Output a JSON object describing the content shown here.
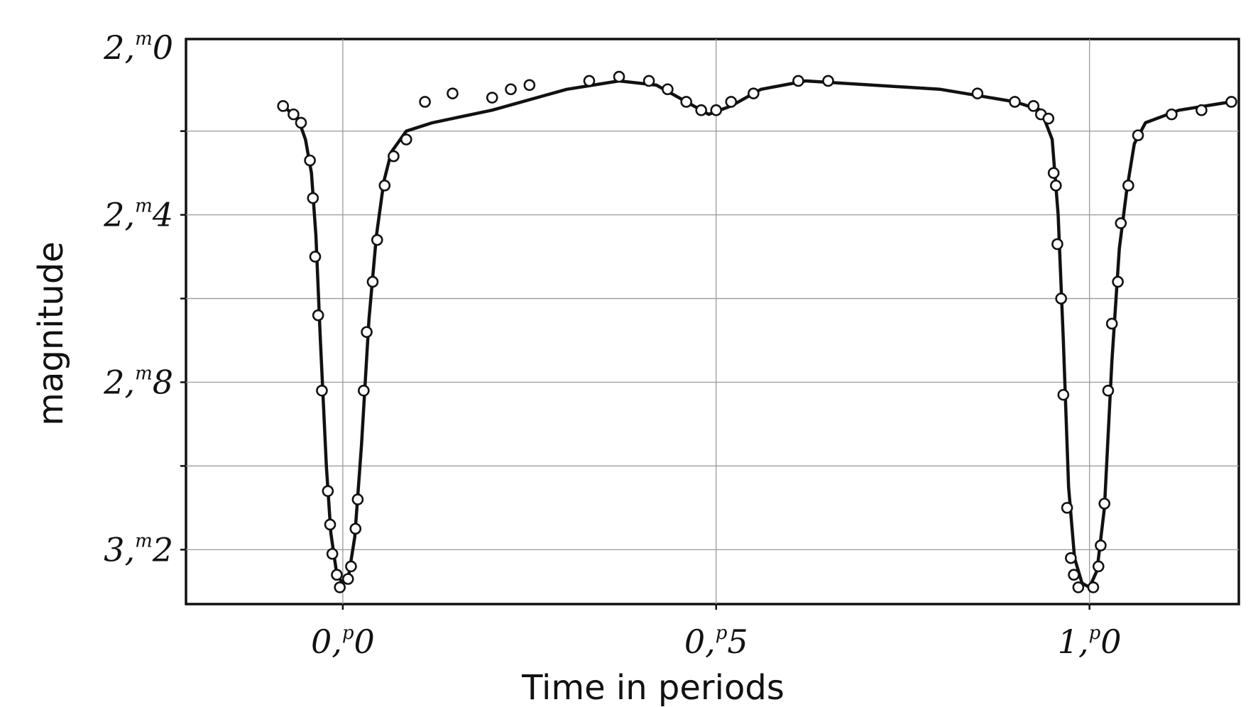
{
  "chart_data": {
    "type": "scatter",
    "title": "",
    "xlabel": "Time in periods",
    "ylabel": "magnitude",
    "xlim": [
      -0.21,
      1.2
    ],
    "ylim": [
      3.33,
      1.98
    ],
    "y_inverted": true,
    "grid": true,
    "x_ticks": [
      {
        "value": 0.0,
        "main": "0,",
        "sup": "p",
        "tail": "0"
      },
      {
        "value": 0.5,
        "main": "0,",
        "sup": "p",
        "tail": "5"
      },
      {
        "value": 1.0,
        "main": "1,",
        "sup": "p",
        "tail": "0"
      }
    ],
    "x_gridlines": [
      0.0,
      0.5,
      1.0
    ],
    "y_ticks": [
      {
        "value": 2.0,
        "main": "2,",
        "sup": "m",
        "tail": "0"
      },
      {
        "value": 2.4,
        "main": "2,",
        "sup": "m",
        "tail": "4"
      },
      {
        "value": 2.8,
        "main": "2,",
        "sup": "m",
        "tail": "8"
      },
      {
        "value": 3.2,
        "main": "3,",
        "sup": "m",
        "tail": "2"
      }
    ],
    "y_gridlines": [
      2.2,
      2.4,
      2.6,
      2.8,
      3.0,
      3.2
    ],
    "series": [
      {
        "points": [
          [
            -0.08,
            2.14
          ],
          [
            -0.066,
            2.16
          ],
          [
            -0.056,
            2.18
          ],
          [
            -0.044,
            2.27
          ],
          [
            -0.04,
            2.36
          ],
          [
            -0.037,
            2.5
          ],
          [
            -0.033,
            2.64
          ],
          [
            -0.028,
            2.82
          ],
          [
            -0.02,
            3.06
          ],
          [
            -0.017,
            3.14
          ],
          [
            -0.014,
            3.21
          ],
          [
            -0.008,
            3.26
          ],
          [
            -0.004,
            3.29
          ],
          [
            0.007,
            3.27
          ],
          [
            0.011,
            3.24
          ],
          [
            0.017,
            3.15
          ],
          [
            0.02,
            3.08
          ],
          [
            0.028,
            2.82
          ],
          [
            0.032,
            2.68
          ],
          [
            0.04,
            2.56
          ],
          [
            0.046,
            2.46
          ],
          [
            0.056,
            2.33
          ],
          [
            0.068,
            2.26
          ],
          [
            0.085,
            2.22
          ],
          [
            0.11,
            2.13
          ],
          [
            0.147,
            2.11
          ],
          [
            0.2,
            2.12
          ],
          [
            0.225,
            2.1
          ],
          [
            0.25,
            2.09
          ],
          [
            0.33,
            2.08
          ],
          [
            0.37,
            2.07
          ],
          [
            0.41,
            2.08
          ],
          [
            0.435,
            2.1
          ],
          [
            0.46,
            2.13
          ],
          [
            0.48,
            2.15
          ],
          [
            0.5,
            2.15
          ],
          [
            0.52,
            2.13
          ],
          [
            0.55,
            2.11
          ],
          [
            0.61,
            2.08
          ],
          [
            0.65,
            2.08
          ],
          [
            0.85,
            2.11
          ],
          [
            0.9,
            2.13
          ],
          [
            0.925,
            2.14
          ],
          [
            0.935,
            2.16
          ],
          [
            0.945,
            2.17
          ],
          [
            0.952,
            2.3
          ],
          [
            0.955,
            2.33
          ],
          [
            0.957,
            2.47
          ],
          [
            0.962,
            2.6
          ],
          [
            0.965,
            2.83
          ],
          [
            0.97,
            3.1
          ],
          [
            0.975,
            3.22
          ],
          [
            0.979,
            3.26
          ],
          [
            0.985,
            3.29
          ],
          [
            1.005,
            3.29
          ],
          [
            1.012,
            3.24
          ],
          [
            1.015,
            3.19
          ],
          [
            1.02,
            3.09
          ],
          [
            1.025,
            2.82
          ],
          [
            1.03,
            2.66
          ],
          [
            1.038,
            2.56
          ],
          [
            1.042,
            2.42
          ],
          [
            1.052,
            2.33
          ],
          [
            1.065,
            2.21
          ],
          [
            1.11,
            2.16
          ],
          [
            1.15,
            2.15
          ],
          [
            1.19,
            2.13
          ]
        ]
      }
    ],
    "fitted_curve": [
      [
        -0.08,
        2.14
      ],
      [
        -0.06,
        2.17
      ],
      [
        -0.05,
        2.22
      ],
      [
        -0.042,
        2.3
      ],
      [
        -0.036,
        2.45
      ],
      [
        -0.03,
        2.7
      ],
      [
        -0.022,
        3.0
      ],
      [
        -0.016,
        3.16
      ],
      [
        -0.008,
        3.26
      ],
      [
        0.0,
        3.28
      ],
      [
        0.008,
        3.26
      ],
      [
        0.016,
        3.17
      ],
      [
        0.025,
        2.95
      ],
      [
        0.035,
        2.65
      ],
      [
        0.045,
        2.45
      ],
      [
        0.055,
        2.32
      ],
      [
        0.065,
        2.25
      ],
      [
        0.085,
        2.2
      ],
      [
        0.12,
        2.18
      ],
      [
        0.2,
        2.15
      ],
      [
        0.3,
        2.1
      ],
      [
        0.37,
        2.08
      ],
      [
        0.42,
        2.09
      ],
      [
        0.46,
        2.13
      ],
      [
        0.49,
        2.16
      ],
      [
        0.52,
        2.14
      ],
      [
        0.56,
        2.1
      ],
      [
        0.62,
        2.08
      ],
      [
        0.8,
        2.1
      ],
      [
        0.9,
        2.13
      ],
      [
        0.935,
        2.15
      ],
      [
        0.95,
        2.22
      ],
      [
        0.958,
        2.4
      ],
      [
        0.965,
        2.7
      ],
      [
        0.972,
        3.05
      ],
      [
        0.98,
        3.22
      ],
      [
        0.99,
        3.28
      ],
      [
        1.0,
        3.29
      ],
      [
        1.01,
        3.25
      ],
      [
        1.02,
        3.1
      ],
      [
        1.03,
        2.75
      ],
      [
        1.04,
        2.48
      ],
      [
        1.05,
        2.34
      ],
      [
        1.06,
        2.23
      ],
      [
        1.075,
        2.18
      ],
      [
        1.12,
        2.15
      ],
      [
        1.19,
        2.13
      ]
    ]
  }
}
